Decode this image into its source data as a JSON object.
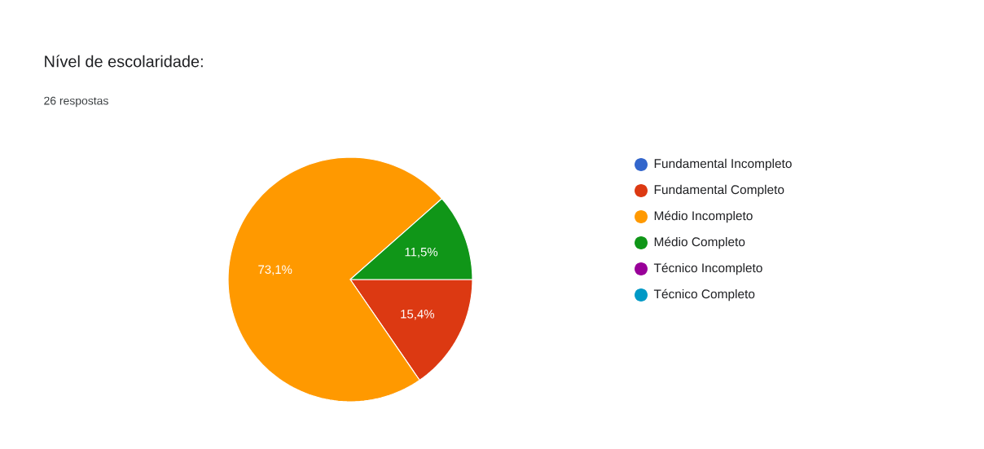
{
  "chart_data": {
    "type": "pie",
    "title": "Nível de escolaridade:",
    "subtitle": "26 respostas",
    "categories": [
      "Fundamental Incompleto",
      "Fundamental Completo",
      "Médio Incompleto",
      "Médio Completo",
      "Técnico Incompleto",
      "Técnico Completo"
    ],
    "values": [
      0,
      15.4,
      73.1,
      11.5,
      0,
      0
    ],
    "colors": [
      "#3366cc",
      "#dc3912",
      "#ff9900",
      "#109618",
      "#990099",
      "#0099c6"
    ],
    "value_labels": [
      null,
      "15,4%",
      "73,1%",
      "11,5%",
      null,
      null
    ],
    "legend": "right"
  }
}
